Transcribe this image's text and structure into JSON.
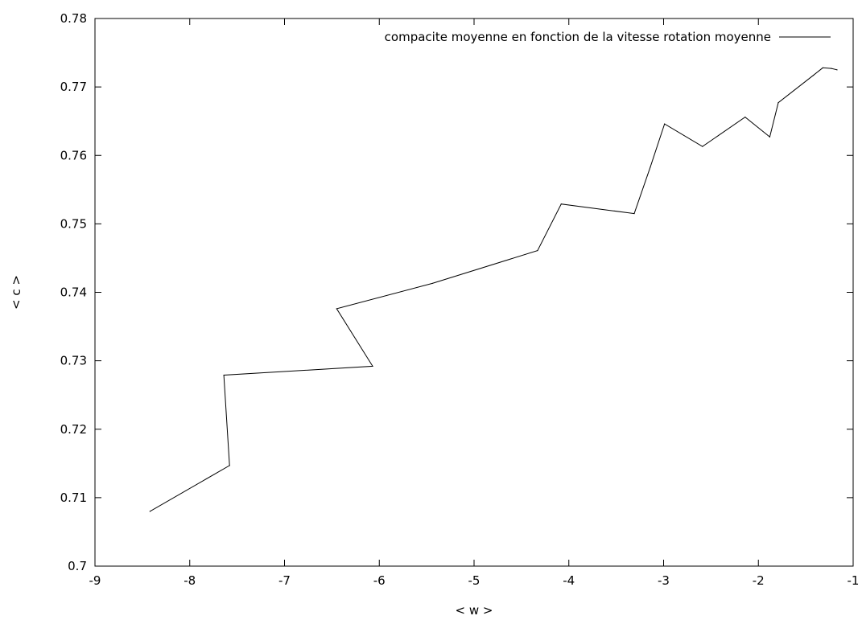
{
  "chart_data": {
    "type": "line",
    "title": "",
    "xlabel": "< w >",
    "ylabel": "< c >",
    "xlim": [
      -9,
      -1
    ],
    "ylim": [
      0.7,
      0.78
    ],
    "xticks": [
      -9,
      -8,
      -7,
      -6,
      -5,
      -4,
      -3,
      -2,
      -1
    ],
    "yticks": [
      0.7,
      0.71,
      0.72,
      0.73,
      0.74,
      0.75,
      0.76,
      0.77,
      0.78
    ],
    "xtick_labels": [
      "-9",
      "-8",
      "-7",
      "-6",
      "-5",
      "-4",
      "-3",
      "-2",
      "-1"
    ],
    "ytick_labels": [
      "0.7",
      "0.71",
      "0.72",
      "0.73",
      "0.74",
      "0.75",
      "0.76",
      "0.77",
      "0.78"
    ],
    "grid": false,
    "legend_position": "top-right",
    "series": [
      {
        "name": "compacite moyenne en fonction de la vitesse rotation moyenne",
        "color": "#000000",
        "x": [
          -8.42,
          -7.58,
          -7.64,
          -6.07,
          -6.45,
          -5.44,
          -4.33,
          -4.08,
          -3.31,
          -3.14,
          -2.99,
          -2.59,
          -2.14,
          -1.88,
          -1.79,
          -1.42,
          -1.32,
          -1.23,
          -1.17
        ],
        "y": [
          0.708,
          0.7147,
          0.7279,
          0.7292,
          0.7376,
          0.7413,
          0.7461,
          0.7529,
          0.7515,
          0.7583,
          0.7646,
          0.7613,
          0.7656,
          0.7627,
          0.7677,
          0.7717,
          0.7728,
          0.7727,
          0.7725
        ]
      }
    ]
  }
}
